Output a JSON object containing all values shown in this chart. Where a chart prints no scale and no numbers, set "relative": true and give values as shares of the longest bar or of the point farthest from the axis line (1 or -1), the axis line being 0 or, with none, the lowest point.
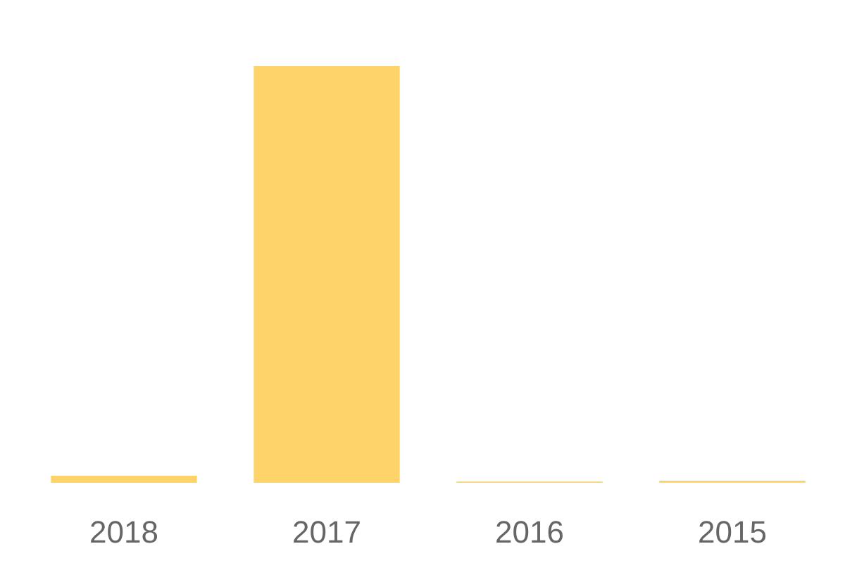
{
  "chart_data": {
    "type": "bar",
    "relative": true,
    "categories": [
      "2018",
      "2017",
      "2016",
      "2015"
    ],
    "values": [
      0.017,
      1,
      0.003,
      0.005
    ],
    "color": "#fed46a"
  }
}
